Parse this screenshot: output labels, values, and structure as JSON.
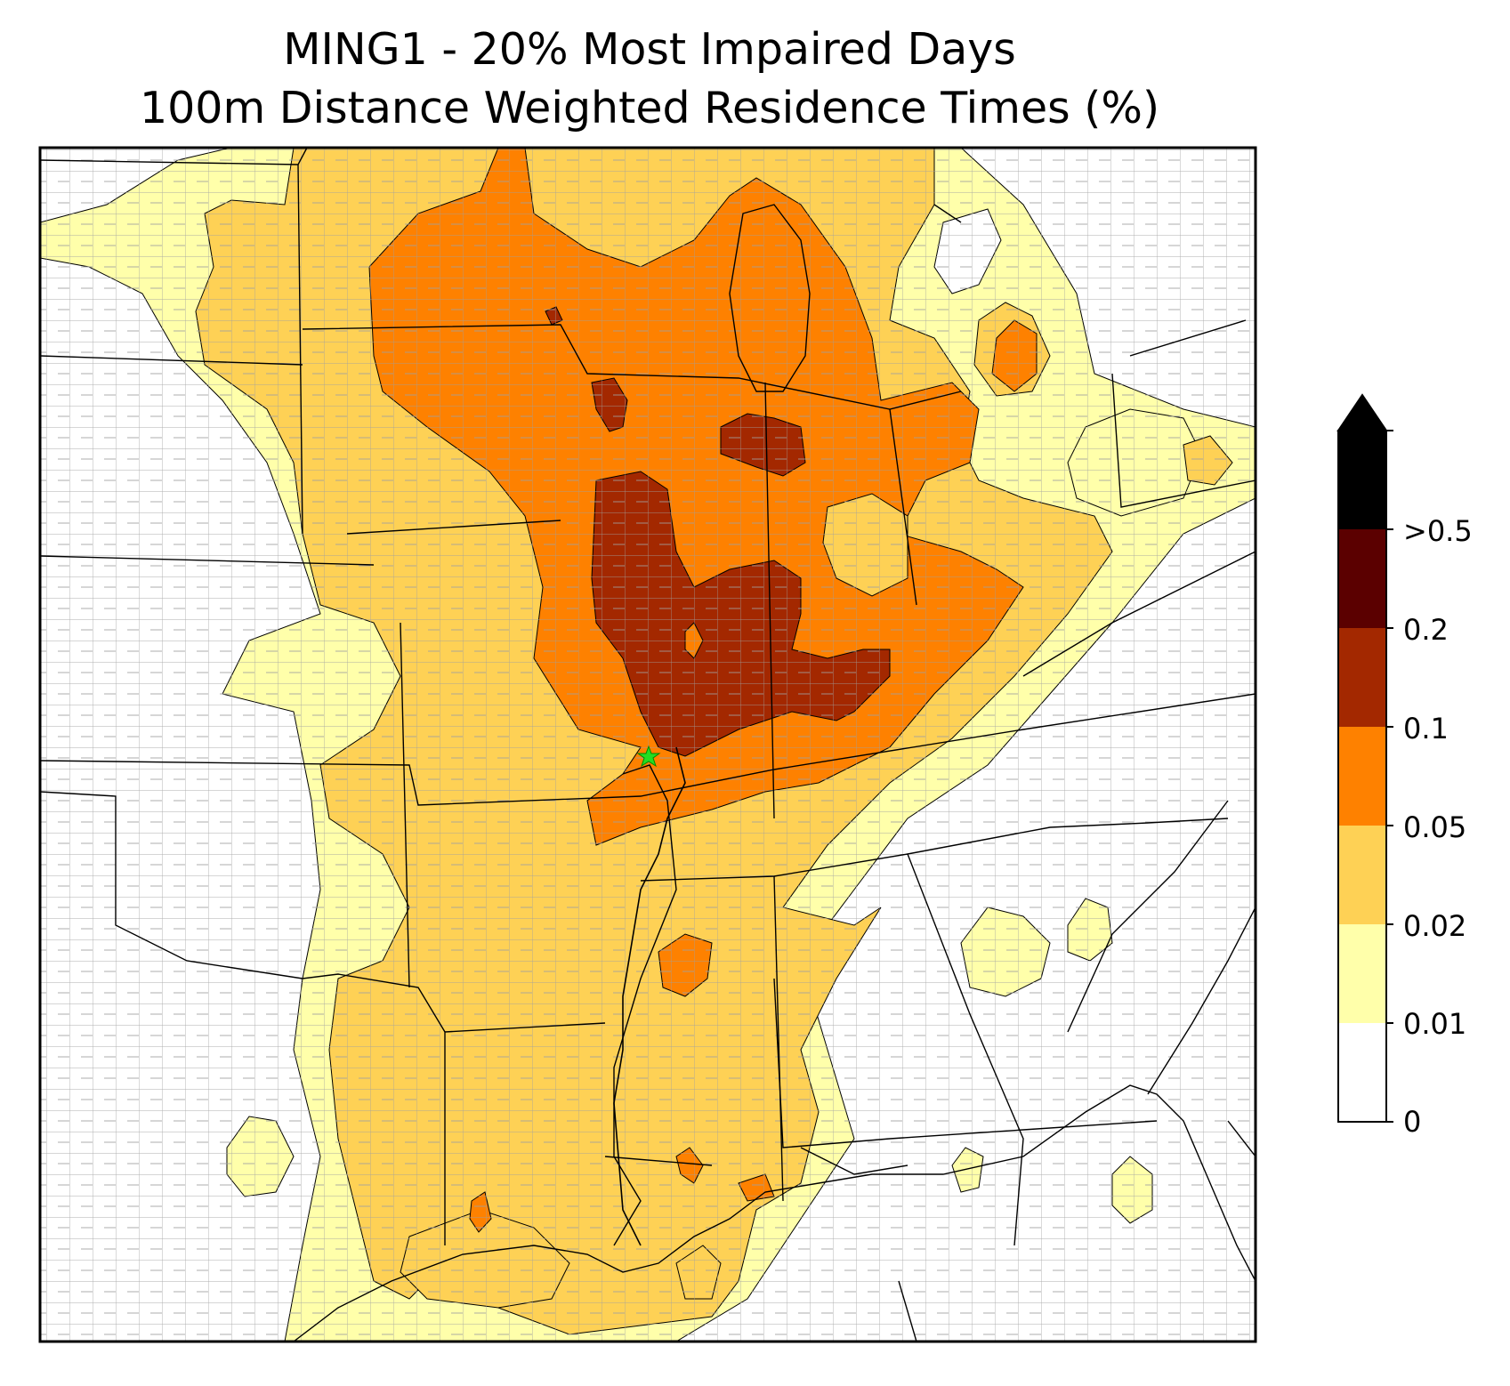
{
  "title_line1": "MING1 - 20% Most Impaired Days",
  "title_line2": "100m Distance Weighted Residence Times (%)",
  "colorbar": {
    "labels": [
      "0",
      "0.01",
      "0.02",
      "0.05",
      "0.1",
      "0.2",
      ">0.5"
    ],
    "colors": [
      "#ffffff",
      "#ffffaa",
      "#fed155",
      "#fe8100",
      "#a32800",
      "#5b0000",
      "#000000"
    ],
    "extend": "max"
  },
  "map": {
    "state_border_color": "#000000",
    "county_border_color": "#a0a0a0",
    "site_marker": "green-star",
    "site_marker_color": "#22dd22"
  },
  "legend_levels": [
    {
      "min": "0",
      "max": "0.01",
      "color": "#ffffff"
    },
    {
      "min": "0.01",
      "max": "0.02",
      "color": "#ffffaa"
    },
    {
      "min": "0.02",
      "max": "0.05",
      "color": "#fed155"
    },
    {
      "min": "0.05",
      "max": "0.1",
      "color": "#fe8100"
    },
    {
      "min": "0.1",
      "max": "0.2",
      "color": "#a32800"
    },
    {
      "min": "0.2",
      "max": "0.5",
      "color": "#5b0000"
    },
    {
      "min": ">0.5",
      "max": "",
      "color": "#000000"
    }
  ]
}
